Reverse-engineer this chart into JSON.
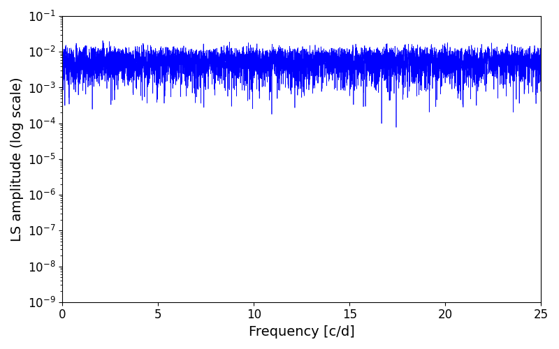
{
  "title": "",
  "xlabel": "Frequency [c/d]",
  "ylabel": "LS amplitude (log scale)",
  "xlim": [
    0,
    25
  ],
  "ylim": [
    1e-09,
    0.1
  ],
  "line_color": "#0000ff",
  "line_width": 0.5,
  "figsize": [
    8.0,
    5.0
  ],
  "dpi": 100,
  "yscale": "log",
  "n_points": 8000,
  "freq_max": 25.0,
  "seed": 42,
  "background_color": "#ffffff",
  "tick_label_size": 12,
  "axis_label_size": 14
}
